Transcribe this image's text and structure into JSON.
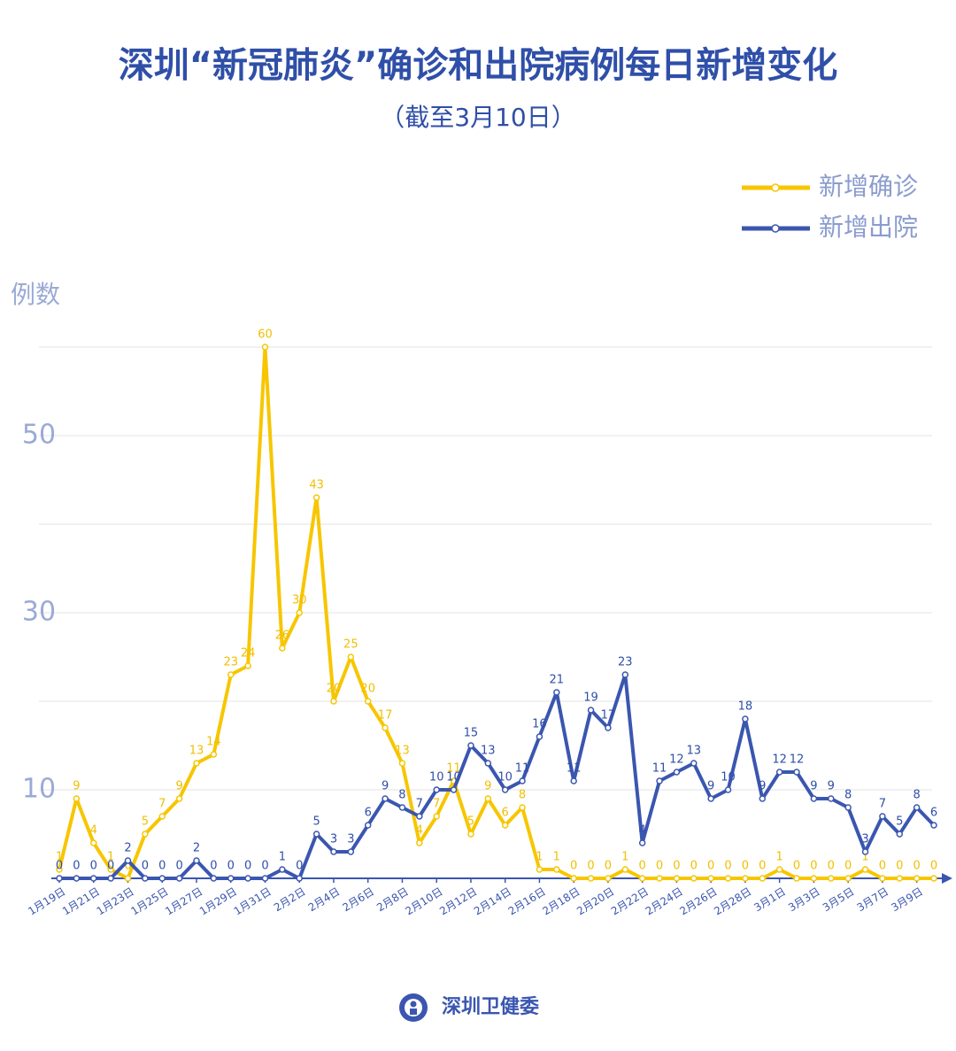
{
  "chart_data": {
    "type": "line",
    "title": "深圳“新冠肺炎”确诊和出院病例每日新增变化",
    "subtitle": "（截至3月10日）",
    "y_label": "例数",
    "categories": [
      "1月19日",
      null,
      "1月21日",
      null,
      "1月23日",
      null,
      "1月25日",
      null,
      "1月27日",
      null,
      "1月29日",
      null,
      "1月31日",
      null,
      "2月2日",
      null,
      "2月4日",
      null,
      "2月6日",
      null,
      "2月8日",
      null,
      "2月10日",
      null,
      "2月12日",
      null,
      "2月14日",
      null,
      "2月16日",
      null,
      "2月18日",
      null,
      "2月20日",
      null,
      "2月22日",
      null,
      "2月24日",
      null,
      "2月26日",
      null,
      "2月28日",
      null,
      "3月1日",
      null,
      "3月3日",
      null,
      "3月5日",
      null,
      "3月7日",
      null,
      "3月9日",
      null
    ],
    "series": [
      {
        "name": "新增确诊",
        "color": "#f7c600",
        "values": [
          1,
          9,
          4,
          1,
          0,
          5,
          7,
          9,
          13,
          14,
          23,
          24,
          60,
          26,
          30,
          43,
          20,
          25,
          20,
          17,
          13,
          4,
          7,
          11,
          5,
          9,
          6,
          8,
          1,
          1,
          0,
          0,
          0,
          1,
          0,
          0,
          0,
          0,
          0,
          0,
          0,
          0,
          1,
          0,
          0,
          0,
          0,
          1,
          0,
          0,
          0,
          0
        ]
      },
      {
        "name": "新增出院",
        "color": "#3a56b0",
        "values": [
          0,
          0,
          0,
          0,
          2,
          0,
          0,
          0,
          2,
          0,
          0,
          0,
          0,
          1,
          0,
          5,
          3,
          3,
          6,
          9,
          8,
          7,
          10,
          10,
          15,
          13,
          10,
          11,
          16,
          21,
          11,
          19,
          17,
          23,
          4,
          11,
          12,
          13,
          9,
          10,
          18,
          9,
          12,
          12,
          9,
          9,
          8,
          3,
          7,
          5,
          8,
          6
        ]
      }
    ],
    "ylim": [
      0,
      60
    ],
    "yticks": [
      10,
      30,
      50
    ],
    "grid_lines": [
      10,
      20,
      30,
      40,
      50,
      60
    ],
    "legend": "top-right",
    "source": "深圳卫健委"
  }
}
